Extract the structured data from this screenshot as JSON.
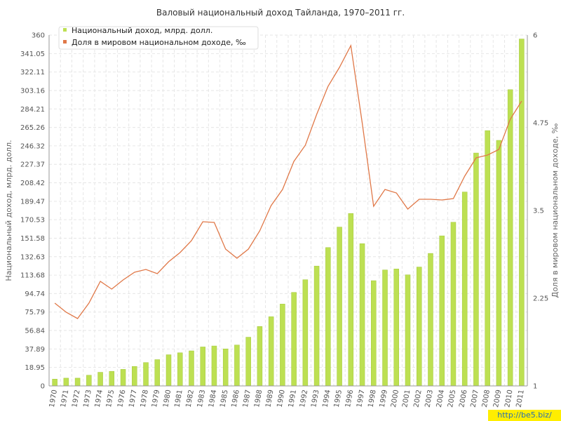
{
  "watermark": "http://be5.biz/",
  "chart_data": {
    "type": "bar",
    "title": "Валовый национальный доход Тайланда, 1970–2011 гг.",
    "ylabel": "Национальный доход, млрд. долл.",
    "y2label": "Доля в мировом национальном доходе, ‰",
    "ylim": [
      0,
      360
    ],
    "y2lim": [
      1,
      6
    ],
    "yticks": [
      "0",
      "18.95",
      "37.89",
      "56.84",
      "75.79",
      "94.74",
      "113.68",
      "132.63",
      "151.58",
      "170.53",
      "189.47",
      "208.42",
      "227.37",
      "246.32",
      "265.26",
      "284.21",
      "303.16",
      "322.11",
      "341.05",
      "360"
    ],
    "y2ticks": [
      "1",
      "2.25",
      "3.5",
      "4.75",
      "6"
    ],
    "grid": true,
    "legend_position": "top-left",
    "colors": {
      "bar": "#bde052",
      "bar_edge": "#a3c83a",
      "line": "#e07848",
      "grid": "#e6e6e6"
    },
    "categories": [
      "1970",
      "1971",
      "1972",
      "1973",
      "1974",
      "1975",
      "1976",
      "1977",
      "1978",
      "1979",
      "1980",
      "1981",
      "1982",
      "1983",
      "1984",
      "1985",
      "1986",
      "1987",
      "1988",
      "1989",
      "1990",
      "1991",
      "1992",
      "1993",
      "1994",
      "1995",
      "1996",
      "1997",
      "1998",
      "1999",
      "2000",
      "2001",
      "2002",
      "2003",
      "2004",
      "2005",
      "2006",
      "2007",
      "2008",
      "2009",
      "2010",
      "2011"
    ],
    "series": [
      {
        "name": "Национальный доход, млрд. долл.",
        "type": "bar",
        "axis": "left",
        "values": [
          7,
          8,
          8,
          11,
          14,
          15,
          17,
          20,
          24,
          27,
          32,
          34,
          36,
          40,
          41,
          38,
          42,
          50,
          61,
          71,
          84,
          96,
          109,
          123,
          142,
          163,
          177,
          146,
          108,
          119,
          120,
          114,
          122,
          136,
          154,
          168,
          199,
          239,
          262,
          252,
          304,
          356
        ]
      },
      {
        "name": "Доля в мировом национальном доходе, ‰",
        "type": "line",
        "axis": "right",
        "values": [
          2.18,
          2.05,
          1.96,
          2.18,
          2.49,
          2.38,
          2.51,
          2.62,
          2.66,
          2.6,
          2.77,
          2.9,
          3.07,
          3.34,
          3.33,
          2.95,
          2.82,
          2.95,
          3.21,
          3.57,
          3.8,
          4.2,
          4.43,
          4.87,
          5.27,
          5.54,
          5.85,
          4.75,
          3.56,
          3.8,
          3.75,
          3.52,
          3.66,
          3.66,
          3.65,
          3.67,
          3.99,
          4.25,
          4.29,
          4.37,
          4.8,
          5.06
        ]
      }
    ]
  }
}
